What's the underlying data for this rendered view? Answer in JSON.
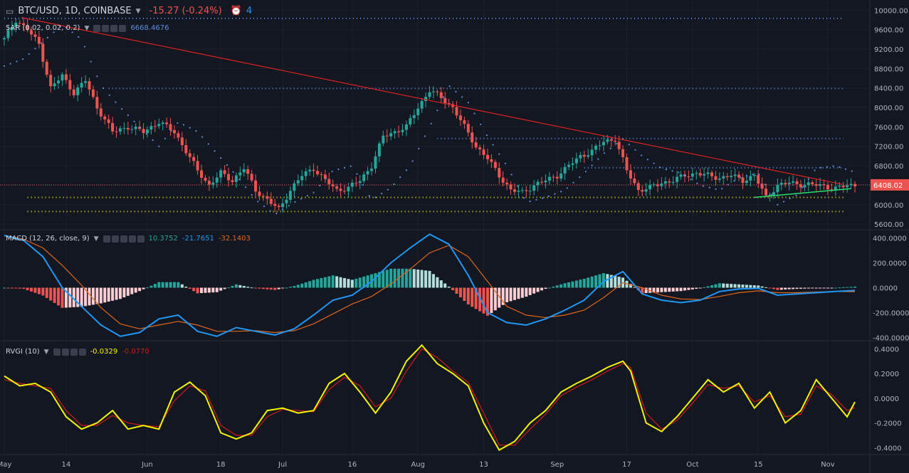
{
  "header": {
    "symbol": "BTC/USD, 1D, COINBASE",
    "change": "-15.27 (-0.24%)",
    "alerts": "4",
    "change_color": "#ef5350"
  },
  "indicators": {
    "sar": {
      "label": "SAR (0.02, 0.02, 0.2)",
      "value": "6668.4676"
    },
    "macd": {
      "label": "MACD (12, 26, close, 9)",
      "v1": "10.3752",
      "v2": "-21.7651",
      "v3": "-32.1403"
    },
    "rvgi": {
      "label": "RVGI (10)",
      "v1": "-0.0329",
      "v2": "-0.0770"
    }
  },
  "colors": {
    "up": "#26a69a",
    "down": "#ef5350",
    "sar": "#5b8fe0",
    "trend": "#e02020",
    "support": "#e6e61a",
    "macd": "#2196f3",
    "signal": "#e0661a",
    "rvgi": "#f5f500",
    "rvgi_signal": "#d01818",
    "price_tag": "#ef5350"
  },
  "x_labels": [
    "May",
    "14",
    "Jun",
    "18",
    "Jul",
    "16",
    "Aug",
    "13",
    "Sep",
    "17",
    "Oct",
    "15",
    "Nov"
  ],
  "price_axis": [
    "10000.00",
    "9600.00",
    "9200.00",
    "8800.00",
    "8400.00",
    "8000.00",
    "7600.00",
    "7200.00",
    "6800.00",
    "6400.00",
    "6000.00",
    "5600.00"
  ],
  "macd_axis": [
    "400.0000",
    "200.0000",
    "0.0000",
    "-200.0000",
    "-400.0000"
  ],
  "rvgi_axis": [
    "0.4000",
    "0.2000",
    "0.0000",
    "-0.2000",
    "-0.4000"
  ],
  "last_price": "6408.02",
  "chart_data": {
    "type": "candlestick",
    "price_range": [
      5500,
      10150
    ],
    "horizontal_levels": [
      {
        "price": 9830,
        "color": "#5b8fe0",
        "style": "dotted"
      },
      {
        "price": 8390,
        "color": "#5b8fe0",
        "style": "dotted"
      },
      {
        "price": 7360,
        "color": "#5b8fe0",
        "style": "dotted"
      },
      {
        "price": 6760,
        "color": "#5b8fe0",
        "style": "dotted"
      },
      {
        "price": 6150,
        "color": "#e6e61a",
        "style": "dotted"
      },
      {
        "price": 5860,
        "color": "#e6e61a",
        "style": "dotted"
      }
    ],
    "trendline": [
      [
        9850,
        0.02
      ],
      [
        6420,
        0.985
      ]
    ],
    "close_path": [
      [
        0,
        9400
      ],
      [
        3,
        9800
      ],
      [
        6,
        9600
      ],
      [
        9,
        9300
      ],
      [
        12,
        8400
      ],
      [
        15,
        8650
      ],
      [
        18,
        8300
      ],
      [
        21,
        8550
      ],
      [
        24,
        8000
      ],
      [
        28,
        7500
      ],
      [
        32,
        7600
      ],
      [
        36,
        7500
      ],
      [
        40,
        7700
      ],
      [
        44,
        7500
      ],
      [
        47,
        7100
      ],
      [
        50,
        6700
      ],
      [
        53,
        6400
      ],
      [
        56,
        6650
      ],
      [
        59,
        6500
      ],
      [
        62,
        6750
      ],
      [
        65,
        6300
      ],
      [
        68,
        6100
      ],
      [
        71,
        5900
      ],
      [
        74,
        6300
      ],
      [
        77,
        6600
      ],
      [
        80,
        6750
      ],
      [
        83,
        6500
      ],
      [
        86,
        6300
      ],
      [
        89,
        6350
      ],
      [
        92,
        6500
      ],
      [
        95,
        6800
      ],
      [
        98,
        7400
      ],
      [
        101,
        7500
      ],
      [
        104,
        7600
      ],
      [
        107,
        8000
      ],
      [
        110,
        8350
      ],
      [
        113,
        8200
      ],
      [
        116,
        8000
      ],
      [
        119,
        7600
      ],
      [
        122,
        7200
      ],
      [
        125,
        6950
      ],
      [
        128,
        6600
      ],
      [
        131,
        6300
      ],
      [
        134,
        6250
      ],
      [
        137,
        6400
      ],
      [
        140,
        6500
      ],
      [
        143,
        6600
      ],
      [
        146,
        6800
      ],
      [
        149,
        7000
      ],
      [
        152,
        7100
      ],
      [
        155,
        7300
      ],
      [
        158,
        7350
      ],
      [
        161,
        6700
      ],
      [
        164,
        6300
      ],
      [
        167,
        6350
      ],
      [
        170,
        6450
      ],
      [
        173,
        6500
      ],
      [
        176,
        6600
      ],
      [
        179,
        6650
      ],
      [
        182,
        6600
      ],
      [
        185,
        6550
      ],
      [
        188,
        6600
      ],
      [
        191,
        6500
      ],
      [
        194,
        6600
      ],
      [
        197,
        6150
      ],
      [
        200,
        6400
      ],
      [
        203,
        6450
      ],
      [
        206,
        6420
      ],
      [
        209,
        6410
      ],
      [
        212,
        6390
      ],
      [
        215,
        6330
      ],
      [
        218,
        6400
      ],
      [
        220,
        6408
      ]
    ],
    "sar_dots": [
      [
        0,
        8850
      ],
      [
        5,
        9000
      ],
      [
        15,
        9700
      ],
      [
        20,
        9400
      ],
      [
        25,
        8450
      ],
      [
        30,
        8000
      ],
      [
        35,
        7600
      ],
      [
        40,
        7200
      ],
      [
        45,
        7700
      ],
      [
        50,
        7500
      ],
      [
        55,
        7050
      ],
      [
        60,
        6600
      ],
      [
        65,
        6100
      ],
      [
        70,
        5800
      ],
      [
        75,
        6050
      ],
      [
        80,
        6250
      ],
      [
        85,
        6700
      ],
      [
        90,
        6800
      ],
      [
        95,
        6100
      ],
      [
        100,
        6350
      ],
      [
        105,
        6800
      ],
      [
        110,
        7600
      ],
      [
        115,
        8450
      ],
      [
        120,
        8100
      ],
      [
        125,
        7400
      ],
      [
        130,
        6800
      ],
      [
        135,
        6050
      ],
      [
        140,
        6150
      ],
      [
        145,
        6300
      ],
      [
        150,
        6650
      ],
      [
        155,
        7050
      ],
      [
        160,
        7350
      ],
      [
        165,
        7000
      ],
      [
        170,
        6750
      ],
      [
        175,
        6650
      ],
      [
        180,
        6400
      ],
      [
        185,
        6300
      ],
      [
        190,
        6550
      ],
      [
        195,
        6650
      ],
      [
        200,
        6000
      ],
      [
        205,
        6200
      ],
      [
        210,
        6750
      ],
      [
        215,
        6800
      ],
      [
        220,
        6670
      ]
    ],
    "macd_line": [
      [
        0,
        420
      ],
      [
        5,
        380
      ],
      [
        10,
        250
      ],
      [
        15,
        0
      ],
      [
        20,
        -150
      ],
      [
        25,
        -300
      ],
      [
        30,
        -390
      ],
      [
        35,
        -360
      ],
      [
        40,
        -250
      ],
      [
        45,
        -220
      ],
      [
        50,
        -350
      ],
      [
        55,
        -390
      ],
      [
        60,
        -320
      ],
      [
        65,
        -350
      ],
      [
        70,
        -380
      ],
      [
        75,
        -330
      ],
      [
        80,
        -220
      ],
      [
        85,
        -100
      ],
      [
        90,
        -60
      ],
      [
        95,
        50
      ],
      [
        100,
        200
      ],
      [
        105,
        320
      ],
      [
        110,
        430
      ],
      [
        115,
        350
      ],
      [
        120,
        100
      ],
      [
        125,
        -200
      ],
      [
        130,
        -280
      ],
      [
        135,
        -300
      ],
      [
        140,
        -250
      ],
      [
        145,
        -180
      ],
      [
        150,
        -100
      ],
      [
        155,
        50
      ],
      [
        160,
        130
      ],
      [
        165,
        -50
      ],
      [
        170,
        -100
      ],
      [
        175,
        -120
      ],
      [
        180,
        -100
      ],
      [
        185,
        -30
      ],
      [
        190,
        -10
      ],
      [
        195,
        -5
      ],
      [
        200,
        -60
      ],
      [
        205,
        -50
      ],
      [
        210,
        -40
      ],
      [
        215,
        -30
      ],
      [
        220,
        -22
      ]
    ],
    "signal_line": [
      [
        0,
        420
      ],
      [
        5,
        390
      ],
      [
        10,
        320
      ],
      [
        15,
        180
      ],
      [
        20,
        20
      ],
      [
        25,
        -160
      ],
      [
        30,
        -290
      ],
      [
        35,
        -330
      ],
      [
        40,
        -300
      ],
      [
        45,
        -270
      ],
      [
        50,
        -300
      ],
      [
        55,
        -350
      ],
      [
        60,
        -350
      ],
      [
        65,
        -345
      ],
      [
        70,
        -360
      ],
      [
        75,
        -345
      ],
      [
        80,
        -290
      ],
      [
        85,
        -210
      ],
      [
        90,
        -130
      ],
      [
        95,
        -70
      ],
      [
        100,
        30
      ],
      [
        105,
        150
      ],
      [
        110,
        280
      ],
      [
        115,
        340
      ],
      [
        120,
        250
      ],
      [
        125,
        50
      ],
      [
        130,
        -150
      ],
      [
        135,
        -220
      ],
      [
        140,
        -240
      ],
      [
        145,
        -220
      ],
      [
        150,
        -180
      ],
      [
        155,
        -80
      ],
      [
        160,
        40
      ],
      [
        165,
        0
      ],
      [
        170,
        -60
      ],
      [
        175,
        -90
      ],
      [
        180,
        -95
      ],
      [
        185,
        -70
      ],
      [
        190,
        -40
      ],
      [
        195,
        -25
      ],
      [
        200,
        -40
      ],
      [
        205,
        -40
      ],
      [
        210,
        -35
      ],
      [
        215,
        -30
      ],
      [
        220,
        -32
      ]
    ],
    "macd_hist_range": [
      -420,
      460
    ],
    "rvgi_line": [
      [
        0,
        0.18
      ],
      [
        4,
        0.1
      ],
      [
        8,
        0.12
      ],
      [
        12,
        0.05
      ],
      [
        16,
        -0.15
      ],
      [
        20,
        -0.25
      ],
      [
        24,
        -0.2
      ],
      [
        28,
        -0.1
      ],
      [
        32,
        -0.25
      ],
      [
        36,
        -0.22
      ],
      [
        40,
        -0.25
      ],
      [
        44,
        0.05
      ],
      [
        48,
        0.13
      ],
      [
        52,
        0.02
      ],
      [
        56,
        -0.28
      ],
      [
        60,
        -0.33
      ],
      [
        64,
        -0.28
      ],
      [
        68,
        -0.1
      ],
      [
        72,
        -0.08
      ],
      [
        76,
        -0.12
      ],
      [
        80,
        -0.1
      ],
      [
        84,
        0.12
      ],
      [
        88,
        0.2
      ],
      [
        92,
        0.05
      ],
      [
        96,
        -0.12
      ],
      [
        100,
        0.05
      ],
      [
        104,
        0.3
      ],
      [
        108,
        0.43
      ],
      [
        112,
        0.28
      ],
      [
        116,
        0.2
      ],
      [
        120,
        0.1
      ],
      [
        124,
        -0.2
      ],
      [
        128,
        -0.42
      ],
      [
        132,
        -0.35
      ],
      [
        136,
        -0.2
      ],
      [
        140,
        -0.1
      ],
      [
        144,
        0.05
      ],
      [
        148,
        0.12
      ],
      [
        152,
        0.18
      ],
      [
        156,
        0.25
      ],
      [
        160,
        0.3
      ],
      [
        162,
        0.22
      ],
      [
        166,
        -0.2
      ],
      [
        170,
        -0.27
      ],
      [
        174,
        -0.15
      ],
      [
        178,
        0.0
      ],
      [
        182,
        0.15
      ],
      [
        186,
        0.05
      ],
      [
        190,
        0.12
      ],
      [
        194,
        -0.08
      ],
      [
        198,
        0.05
      ],
      [
        202,
        -0.2
      ],
      [
        206,
        -0.1
      ],
      [
        210,
        0.15
      ],
      [
        214,
        0.0
      ],
      [
        218,
        -0.15
      ],
      [
        220,
        -0.03
      ]
    ],
    "rvgi_signal": [
      [
        0,
        0.15
      ],
      [
        4,
        0.12
      ],
      [
        8,
        0.1
      ],
      [
        12,
        0.08
      ],
      [
        16,
        -0.1
      ],
      [
        20,
        -0.22
      ],
      [
        24,
        -0.22
      ],
      [
        28,
        -0.14
      ],
      [
        32,
        -0.2
      ],
      [
        36,
        -0.22
      ],
      [
        40,
        -0.23
      ],
      [
        44,
        -0.02
      ],
      [
        48,
        0.1
      ],
      [
        52,
        0.06
      ],
      [
        56,
        -0.22
      ],
      [
        60,
        -0.3
      ],
      [
        64,
        -0.3
      ],
      [
        68,
        -0.15
      ],
      [
        72,
        -0.09
      ],
      [
        76,
        -0.1
      ],
      [
        80,
        -0.11
      ],
      [
        84,
        0.07
      ],
      [
        88,
        0.17
      ],
      [
        92,
        0.1
      ],
      [
        96,
        -0.07
      ],
      [
        100,
        0.0
      ],
      [
        104,
        0.22
      ],
      [
        108,
        0.4
      ],
      [
        112,
        0.33
      ],
      [
        116,
        0.22
      ],
      [
        120,
        0.13
      ],
      [
        124,
        -0.12
      ],
      [
        128,
        -0.38
      ],
      [
        132,
        -0.38
      ],
      [
        136,
        -0.25
      ],
      [
        140,
        -0.13
      ],
      [
        144,
        0.02
      ],
      [
        148,
        0.09
      ],
      [
        152,
        0.15
      ],
      [
        156,
        0.22
      ],
      [
        160,
        0.28
      ],
      [
        162,
        0.25
      ],
      [
        166,
        -0.12
      ],
      [
        170,
        -0.25
      ],
      [
        174,
        -0.18
      ],
      [
        178,
        -0.04
      ],
      [
        182,
        0.11
      ],
      [
        186,
        0.08
      ],
      [
        190,
        0.1
      ],
      [
        194,
        -0.03
      ],
      [
        198,
        0.02
      ],
      [
        202,
        -0.15
      ],
      [
        206,
        -0.13
      ],
      [
        210,
        0.1
      ],
      [
        214,
        0.03
      ],
      [
        218,
        -0.1
      ],
      [
        220,
        -0.077
      ]
    ],
    "rvgi_range": [
      -0.45,
      0.46
    ]
  }
}
